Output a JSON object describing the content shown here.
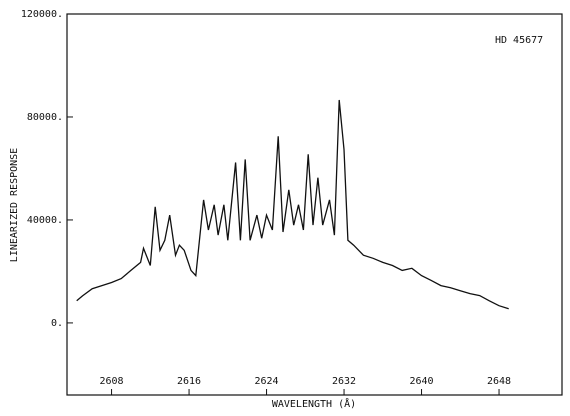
{
  "chart_data": {
    "type": "line",
    "annotation": "HD 45677",
    "x_label": "WAVELENGTH (Å)",
    "y_label": "LINEARIZED RESPONSE",
    "xlim": [
      2603.4,
      2654.5
    ],
    "ylim": [
      -28000,
      120000
    ],
    "xticks": [
      2608,
      2616,
      2624,
      2632,
      2640,
      2648
    ],
    "yticks": [
      {
        "value": 0,
        "label": "0."
      },
      {
        "value": 40000,
        "label": "40000."
      },
      {
        "value": 80000,
        "label": "80000."
      },
      {
        "value": 120000,
        "label": "120000."
      }
    ],
    "color": "#111111",
    "x": [
      2604.4,
      2605,
      2606,
      2607,
      2608,
      2609,
      2610,
      2611,
      2611.3,
      2612,
      2612.5,
      2613,
      2613.5,
      2614,
      2614.6,
      2615,
      2615.5,
      2616.2,
      2616.7,
      2617.5,
      2618,
      2618.6,
      2619,
      2619.6,
      2620,
      2620.8,
      2621.3,
      2621.8,
      2622.3,
      2623,
      2623.5,
      2624,
      2624.6,
      2625.2,
      2625.7,
      2626.3,
      2626.8,
      2627.3,
      2627.8,
      2628.3,
      2628.8,
      2629.3,
      2629.8,
      2630.5,
      2631,
      2631.5,
      2632,
      2632.4,
      2633,
      2634,
      2635,
      2636,
      2637,
      2638,
      2639,
      2640,
      2641,
      2642,
      2643,
      2644,
      2645,
      2646,
      2647,
      2648,
      2649
    ],
    "values": [
      8600,
      10500,
      13300,
      14500,
      15700,
      17200,
      20400,
      23500,
      29000,
      22300,
      45100,
      28200,
      32100,
      41900,
      26300,
      30200,
      28200,
      20400,
      18400,
      47800,
      36100,
      45900,
      34100,
      45900,
      32100,
      62300,
      32100,
      63500,
      32100,
      41900,
      32900,
      41900,
      36100,
      72500,
      35300,
      51700,
      38000,
      45900,
      36100,
      65500,
      38000,
      56400,
      38000,
      47800,
      34100,
      86600,
      67400,
      32100,
      30200,
      26300,
      25100,
      23500,
      22300,
      20400,
      21200,
      18400,
      16500,
      14500,
      13700,
      12500,
      11400,
      10600,
      8600,
      6700,
      5500
    ]
  }
}
